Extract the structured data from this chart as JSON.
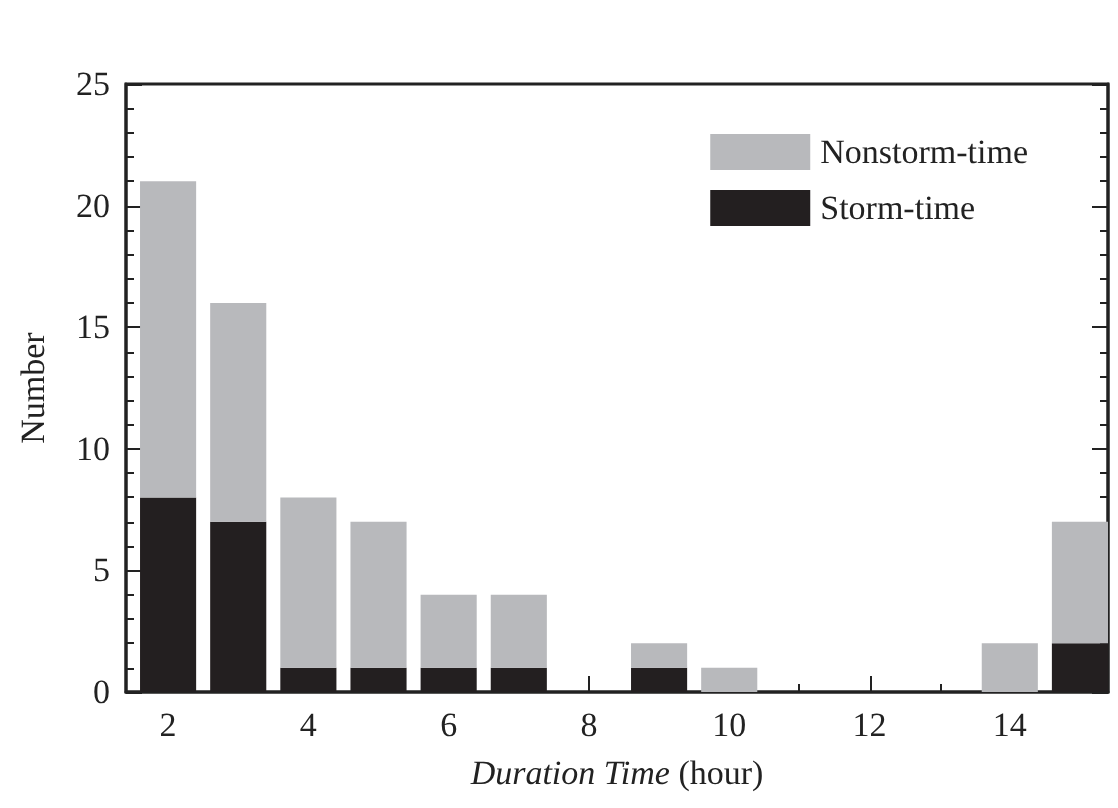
{
  "chart_data": {
    "type": "bar",
    "stacked": true,
    "x": [
      2,
      3,
      4,
      5,
      6,
      7,
      8,
      9,
      10,
      11,
      12,
      13,
      14,
      15
    ],
    "series": [
      {
        "name": "Storm-time",
        "color": "#231f20",
        "values": [
          8,
          7,
          1,
          1,
          1,
          1,
          0,
          1,
          0,
          0,
          0,
          0,
          0,
          2
        ]
      },
      {
        "name": "Nonstorm-time",
        "color": "#b8b9bc",
        "values": [
          13,
          9,
          7,
          6,
          3,
          3,
          0,
          1,
          1,
          0,
          0,
          0,
          2,
          5
        ]
      }
    ],
    "xlabel": "Duration Time (hour)",
    "ylabel": "Number",
    "xlim": [
      1.4,
      15.4
    ],
    "ylim": [
      0,
      25
    ],
    "xticks": [
      2,
      {
        "value": 3,
        "label": null
      },
      4,
      {
        "value": 5,
        "label": null
      },
      6,
      {
        "value": 7,
        "label": null
      },
      8,
      {
        "value": 9,
        "label": null
      },
      10,
      {
        "value": 11,
        "label": null
      },
      12,
      {
        "value": 13,
        "label": null
      },
      14,
      {
        "value": 15,
        "label": null
      }
    ],
    "yticks": [
      0,
      {
        "value": 1,
        "label": null
      },
      {
        "value": 2,
        "label": null
      },
      {
        "value": 3,
        "label": null
      },
      {
        "value": 4,
        "label": null
      },
      5,
      {
        "value": 6,
        "label": null
      },
      {
        "value": 7,
        "label": null
      },
      {
        "value": 8,
        "label": null
      },
      {
        "value": 9,
        "label": null
      },
      10,
      {
        "value": 11,
        "label": null
      },
      {
        "value": 12,
        "label": null
      },
      {
        "value": 13,
        "label": null
      },
      {
        "value": 14,
        "label": null
      },
      15,
      {
        "value": 16,
        "label": null
      },
      {
        "value": 17,
        "label": null
      },
      {
        "value": 18,
        "label": null
      },
      {
        "value": 19,
        "label": null
      },
      20,
      {
        "value": 21,
        "label": null
      },
      {
        "value": 22,
        "label": null
      },
      {
        "value": 23,
        "label": null
      },
      {
        "value": 24,
        "label": null
      },
      25
    ],
    "grid": false,
    "legend": "top right"
  }
}
